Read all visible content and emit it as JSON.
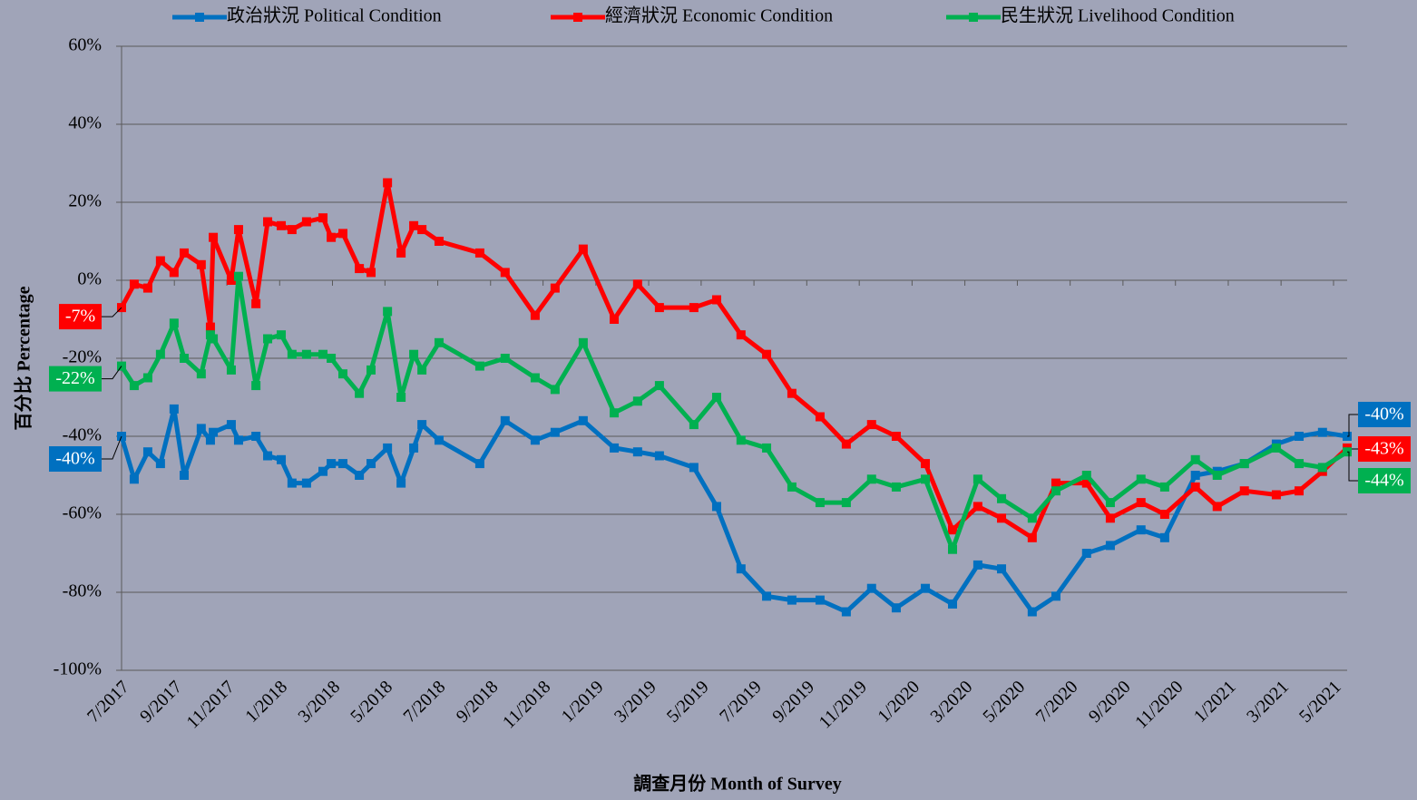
{
  "chart_data": {
    "type": "line",
    "x_label": "調查月份 Month of Survey",
    "y_label": "百分比 Percentage",
    "x": [
      2017.5,
      2017.54,
      2017.583,
      2017.623,
      2017.666,
      2017.698,
      2017.752,
      2017.781,
      2017.79,
      2017.847,
      2017.87,
      2017.925,
      2017.962,
      2018.005,
      2018.039,
      2018.085,
      2018.137,
      2018.163,
      2018.2,
      2018.252,
      2018.289,
      2018.341,
      2018.384,
      2018.424,
      2018.45,
      2018.504,
      2018.633,
      2018.713,
      2018.808,
      2018.871,
      2018.96,
      2019.058,
      2019.132,
      2019.201,
      2019.31,
      2019.382,
      2019.459,
      2019.54,
      2019.62,
      2019.709,
      2019.792,
      2019.872,
      2019.95,
      2020.042,
      2020.128,
      2020.208,
      2020.283,
      2020.38,
      2020.455,
      2020.552,
      2020.627,
      2020.724,
      2020.799,
      2020.896,
      2020.965,
      2021.051,
      2021.152,
      2021.224,
      2021.298,
      2021.376
    ],
    "series": [
      {
        "name": "政治狀況 Political Condition",
        "color": "#0070c0",
        "values": [
          -40,
          -51,
          -44,
          -47,
          -33,
          -50,
          -38,
          -41,
          -39,
          -37,
          -41,
          -40,
          -45,
          -46,
          -52,
          -52,
          -49,
          -47,
          -47,
          -50,
          -47,
          -43,
          -52,
          -43,
          -37,
          -41,
          -47,
          -36,
          -41,
          -39,
          -36,
          -43,
          -44,
          -45,
          -48,
          -58,
          -74,
          -81,
          -82,
          -82,
          -85,
          -79,
          -84,
          -79,
          -83,
          -73,
          -74,
          -85,
          -81,
          -70,
          -68,
          -64,
          -66,
          -50,
          -49,
          -47,
          -42,
          -40,
          -39,
          -40
        ],
        "value_labels": [
          "-40%",
          null,
          null,
          null,
          null,
          null,
          null,
          null,
          null,
          null,
          null,
          null,
          null,
          null,
          null,
          null,
          null,
          null,
          null,
          null,
          null,
          null,
          null,
          null,
          null,
          null,
          null,
          null,
          null,
          null,
          null,
          null,
          null,
          null,
          null,
          null,
          null,
          null,
          null,
          null,
          null,
          null,
          null,
          null,
          null,
          null,
          null,
          null,
          null,
          null,
          null,
          null,
          null,
          null,
          null,
          null,
          null,
          null,
          null,
          "-40%"
        ]
      },
      {
        "name": "經濟狀況 Economic Condition",
        "color": "#ff0000",
        "values": [
          -7,
          -1,
          -2,
          5,
          2,
          7,
          4,
          -12,
          11,
          0,
          13,
          -6,
          15,
          14,
          13,
          15,
          16,
          11,
          12,
          3,
          2,
          25,
          7,
          14,
          13,
          10,
          7,
          2,
          -9,
          -2,
          8,
          -10,
          -1,
          -7,
          -7,
          -5,
          -14,
          -19,
          -29,
          -35,
          -42,
          -37,
          -40,
          -47,
          -64,
          -58,
          -61,
          -66,
          -52,
          -52,
          -61,
          -57,
          -60,
          -53,
          -58,
          -54,
          -55,
          -54,
          -49,
          -43
        ],
        "value_labels": [
          "-7%",
          null,
          null,
          null,
          null,
          null,
          null,
          null,
          null,
          null,
          null,
          null,
          null,
          null,
          null,
          null,
          null,
          null,
          null,
          null,
          null,
          null,
          null,
          null,
          null,
          null,
          null,
          null,
          null,
          null,
          null,
          null,
          null,
          null,
          null,
          null,
          null,
          null,
          null,
          null,
          null,
          null,
          null,
          null,
          null,
          null,
          null,
          null,
          null,
          null,
          null,
          null,
          null,
          null,
          null,
          null,
          null,
          null,
          null,
          "-43%"
        ]
      },
      {
        "name": "民生狀況 Livelihood Condition",
        "color": "#00b050",
        "values": [
          -22,
          -27,
          -25,
          -19,
          -11,
          -20,
          -24,
          -14,
          -15,
          -23,
          1,
          -27,
          -15,
          -14,
          -19,
          -19,
          -19,
          -20,
          -24,
          -29,
          -23,
          -8,
          -30,
          -19,
          -23,
          -16,
          -22,
          -20,
          -25,
          -28,
          -16,
          -34,
          -31,
          -27,
          -37,
          -30,
          -41,
          -43,
          -53,
          -57,
          -57,
          -51,
          -53,
          -51,
          -69,
          -51,
          -56,
          -61,
          -54,
          -50,
          -57,
          -51,
          -53,
          -46,
          -50,
          -47,
          -43,
          -47,
          -48,
          -44
        ],
        "value_labels": [
          "-22%",
          null,
          null,
          null,
          null,
          null,
          null,
          null,
          null,
          null,
          null,
          null,
          null,
          null,
          null,
          null,
          null,
          null,
          null,
          null,
          null,
          null,
          null,
          null,
          null,
          null,
          null,
          null,
          null,
          null,
          null,
          null,
          null,
          null,
          null,
          null,
          null,
          null,
          null,
          null,
          null,
          null,
          null,
          null,
          null,
          null,
          null,
          null,
          null,
          null,
          null,
          null,
          null,
          null,
          null,
          null,
          null,
          null,
          null,
          "-44%"
        ]
      }
    ],
    "xlim": [
      2017.5,
      2021.376
    ],
    "xticks": [
      {
        "value": 2017.5,
        "label": "7/2017"
      },
      {
        "value": 2017.667,
        "label": "9/2017"
      },
      {
        "value": 2017.833,
        "label": "11/2017"
      },
      {
        "value": 2018,
        "label": "1/2018"
      },
      {
        "value": 2018.167,
        "label": "3/2018"
      },
      {
        "value": 2018.333,
        "label": "5/2018"
      },
      {
        "value": 2018.5,
        "label": "7/2018"
      },
      {
        "value": 2018.667,
        "label": "9/2018"
      },
      {
        "value": 2018.833,
        "label": "11/2018"
      },
      {
        "value": 2019,
        "label": "1/2019"
      },
      {
        "value": 2019.167,
        "label": "3/2019"
      },
      {
        "value": 2019.333,
        "label": "5/2019"
      },
      {
        "value": 2019.5,
        "label": "7/2019"
      },
      {
        "value": 2019.667,
        "label": "9/2019"
      },
      {
        "value": 2019.833,
        "label": "11/2019"
      },
      {
        "value": 2020,
        "label": "1/2020"
      },
      {
        "value": 2020.167,
        "label": "3/2020"
      },
      {
        "value": 2020.333,
        "label": "5/2020"
      },
      {
        "value": 2020.5,
        "label": "7/2020"
      },
      {
        "value": 2020.667,
        "label": "9/2020"
      },
      {
        "value": 2020.833,
        "label": "11/2020"
      },
      {
        "value": 2021,
        "label": "1/2021"
      },
      {
        "value": 2021.167,
        "label": "3/2021"
      },
      {
        "value": 2021.333,
        "label": "5/2021"
      }
    ],
    "ylim": [
      -100,
      60
    ],
    "yticks": [
      {
        "value": 60,
        "label": "60%"
      },
      {
        "value": 40,
        "label": "40%"
      },
      {
        "value": 20,
        "label": "20%"
      },
      {
        "value": 0,
        "label": "0%"
      },
      {
        "value": -20,
        "label": "-20%"
      },
      {
        "value": -40,
        "label": "-40%"
      },
      {
        "value": -60,
        "label": "-60%"
      },
      {
        "value": -80,
        "label": "-80%"
      },
      {
        "value": -100,
        "label": "-100%"
      }
    ],
    "grid": true,
    "legend": "top"
  }
}
